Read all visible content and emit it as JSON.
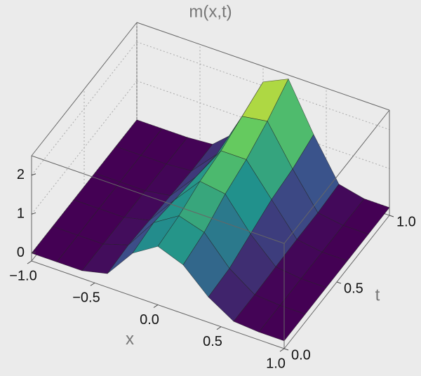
{
  "chart_data": {
    "type": "surface",
    "title": "m(x,t)",
    "xlabel": "x",
    "tlabel": "t",
    "x": [
      -1,
      -0.8,
      -0.6,
      -0.4,
      -0.2,
      0,
      0.2,
      0.4,
      0.6,
      0.8,
      1
    ],
    "t": [
      0,
      0.2,
      0.4,
      0.6,
      0.8,
      1
    ],
    "z": [
      [
        0,
        0,
        0,
        0.15,
        0.9,
        1.3,
        1.05,
        0.45,
        0.05,
        0,
        0
      ],
      [
        0,
        0,
        0,
        0.2,
        1.0,
        1.4,
        1.2,
        0.5,
        0.05,
        0,
        0
      ],
      [
        0,
        0,
        0,
        0.15,
        0.9,
        1.6,
        1.5,
        0.7,
        0.08,
        0,
        0
      ],
      [
        0,
        0,
        0,
        0.1,
        0.8,
        1.7,
        1.7,
        0.9,
        0.1,
        0,
        0
      ],
      [
        0,
        0,
        0,
        0.05,
        0.7,
        1.9,
        2.0,
        1.0,
        0.1,
        0,
        0
      ],
      [
        0,
        0,
        0,
        0.05,
        0.6,
        2.1,
        2.4,
        1.2,
        0.15,
        0,
        0
      ]
    ],
    "colormap": "viridis",
    "xlim": [
      -1,
      1
    ],
    "tlim": [
      0,
      1
    ],
    "zlim": [
      -0.2,
      2.5
    ],
    "xticks": [
      {
        "value": -1,
        "label": "−1.0"
      },
      {
        "value": -0.5,
        "label": "−0.5"
      },
      {
        "value": 0,
        "label": "0.0"
      },
      {
        "value": 0.5,
        "label": "0.5"
      },
      {
        "value": 1,
        "label": "1.0"
      }
    ],
    "tticks": [
      {
        "value": 0,
        "label": "0.0"
      },
      {
        "value": 0.5,
        "label": "0.5"
      },
      {
        "value": 1,
        "label": "1.0"
      }
    ],
    "zticks": [
      0,
      1,
      2
    ],
    "grid": true
  }
}
